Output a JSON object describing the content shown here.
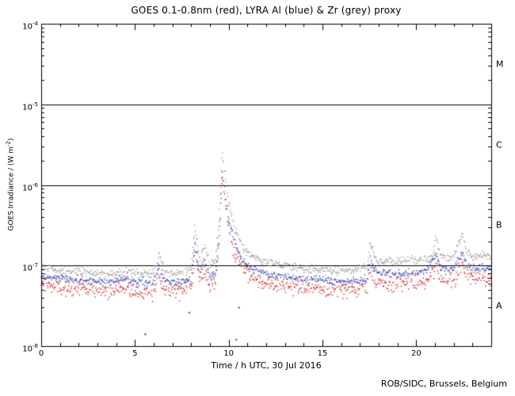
{
  "footer": {
    "credit": "ROB/SIDC, Brussels, Belgium"
  },
  "chart_data": {
    "type": "scatter",
    "title": "GOES 0.1-0.8nm (red), LYRA Al (blue) & Zr (grey) proxy",
    "xlabel": "Time / h UTC, 30 Jul 2016",
    "ylabel": {
      "prefix": "GOES Irradiance / (W m",
      "sup": "-2",
      "suffix": ")"
    },
    "xlim": [
      0,
      24
    ],
    "x_major_ticks": [
      0,
      5,
      10,
      15,
      20
    ],
    "x_minor_step": 1,
    "y_tick_exponents": [
      -8,
      -7,
      -6,
      -5,
      -4
    ],
    "ylim": [
      1e-08,
      0.0001
    ],
    "grid": false,
    "legend": "encoded in title colors",
    "flare_class_lines": [
      1e-07,
      1e-06,
      1e-05
    ],
    "flare_class_labels": [
      {
        "label": "M",
        "y": 3.16e-05
      },
      {
        "label": "C",
        "y": 3.16e-06
      },
      {
        "label": "B",
        "y": 3.16e-07
      },
      {
        "label": "A",
        "y": 3.16e-08
      }
    ],
    "sample_step_hours": 0.03,
    "series": [
      {
        "name": "LYRA Zr proxy",
        "color": "#9a9a9a",
        "scatter_sigma": 0.025,
        "anchors": [
          [
            0,
            9.5e-08
          ],
          [
            0.5,
            9e-08
          ],
          [
            1,
            8.6e-08
          ],
          [
            1.5,
            8.4e-08
          ],
          [
            2,
            8.6e-08
          ],
          [
            2.5,
            8.2e-08
          ],
          [
            3,
            8e-08
          ],
          [
            3.5,
            8e-08
          ],
          [
            4,
            8.2e-08
          ],
          [
            4.5,
            9e-08
          ],
          [
            5,
            8e-08
          ],
          [
            5.5,
            7.8e-08
          ],
          [
            6,
            8e-08
          ],
          [
            6.3,
            1.4e-07
          ],
          [
            6.6,
            8.6e-08
          ],
          [
            7,
            8e-08
          ],
          [
            7.5,
            8e-08
          ],
          [
            8.0,
            9e-08
          ],
          [
            8.2,
            3e-07
          ],
          [
            8.45,
            1.2e-07
          ],
          [
            8.7,
            1.8e-07
          ],
          [
            9.0,
            1.05e-07
          ],
          [
            9.3,
            1.15e-07
          ],
          [
            9.5,
            4e-07
          ],
          [
            9.65,
            2.5e-06
          ],
          [
            9.8,
            1.4e-06
          ],
          [
            10.0,
            6e-07
          ],
          [
            10.3,
            3e-07
          ],
          [
            10.7,
            1.8e-07
          ],
          [
            11.0,
            1.45e-07
          ],
          [
            11.4,
            1.25e-07
          ],
          [
            12,
            1.1e-07
          ],
          [
            12.5,
            1.05e-07
          ],
          [
            13,
            1e-07
          ],
          [
            13.5,
            9.6e-08
          ],
          [
            14,
            9.2e-08
          ],
          [
            14.5,
            9e-08
          ],
          [
            15,
            8.8e-08
          ],
          [
            15.5,
            8.6e-08
          ],
          [
            16,
            8.6e-08
          ],
          [
            16.5,
            8.8e-08
          ],
          [
            17,
            9.2e-08
          ],
          [
            17.4,
            1e-07
          ],
          [
            17.55,
            1.9e-07
          ],
          [
            17.8,
            1.25e-07
          ],
          [
            18,
            1.12e-07
          ],
          [
            18.5,
            1.15e-07
          ],
          [
            19,
            1.1e-07
          ],
          [
            19.5,
            1.18e-07
          ],
          [
            20,
            1.15e-07
          ],
          [
            20.5,
            1.2e-07
          ],
          [
            20.9,
            1.3e-07
          ],
          [
            21.05,
            2.3e-07
          ],
          [
            21.3,
            1.35e-07
          ],
          [
            21.7,
            1.25e-07
          ],
          [
            22,
            1.28e-07
          ],
          [
            22.45,
            2.4e-07
          ],
          [
            22.7,
            1.45e-07
          ],
          [
            23,
            1.32e-07
          ],
          [
            23.5,
            1.38e-07
          ],
          [
            24,
            1.3e-07
          ]
        ]
      },
      {
        "name": "LYRA Al",
        "color": "#3340b0",
        "scatter_sigma": 0.025,
        "anchors": [
          [
            0,
            7.2e-08
          ],
          [
            0.5,
            7e-08
          ],
          [
            1,
            6.8e-08
          ],
          [
            2,
            6.6e-08
          ],
          [
            3,
            6.3e-08
          ],
          [
            4,
            6.3e-08
          ],
          [
            4.5,
            7e-08
          ],
          [
            5,
            6.2e-08
          ],
          [
            6,
            6.2e-08
          ],
          [
            6.3,
            9.5e-08
          ],
          [
            6.6,
            6.6e-08
          ],
          [
            7,
            6.2e-08
          ],
          [
            8,
            6.6e-08
          ],
          [
            8.2,
            1.9e-07
          ],
          [
            8.45,
            8.2e-08
          ],
          [
            8.7,
            1.2e-07
          ],
          [
            9,
            7.2e-08
          ],
          [
            9.3,
            8e-08
          ],
          [
            9.5,
            2.6e-07
          ],
          [
            9.65,
            1.5e-06
          ],
          [
            9.8,
            8.5e-07
          ],
          [
            10,
            3.8e-07
          ],
          [
            10.3,
            1.9e-07
          ],
          [
            10.7,
            1.2e-07
          ],
          [
            11,
            9.8e-08
          ],
          [
            11.4,
            8.6e-08
          ],
          [
            12,
            7.8e-08
          ],
          [
            13,
            7.2e-08
          ],
          [
            13.5,
            7e-08
          ],
          [
            14,
            6.8e-08
          ],
          [
            15,
            6.4e-08
          ],
          [
            16,
            6.3e-08
          ],
          [
            17,
            6.6e-08
          ],
          [
            17.4,
            7.2e-08
          ],
          [
            17.55,
            1.25e-07
          ],
          [
            17.8,
            8.6e-08
          ],
          [
            18,
            7.8e-08
          ],
          [
            18.5,
            8e-08
          ],
          [
            19,
            7.7e-08
          ],
          [
            19.5,
            8.2e-08
          ],
          [
            20,
            8e-08
          ],
          [
            20.5,
            8.3e-08
          ],
          [
            21.05,
            1.4e-07
          ],
          [
            21.3,
            9.2e-08
          ],
          [
            22,
            8.8e-08
          ],
          [
            22.45,
            1.5e-07
          ],
          [
            22.7,
            9.6e-08
          ],
          [
            23,
            9e-08
          ],
          [
            23.5,
            9.3e-08
          ],
          [
            24,
            9e-08
          ]
        ]
      },
      {
        "name": "GOES 0.1-0.8nm",
        "color": "#cc2222",
        "scatter_sigma": 0.05,
        "anchors": [
          [
            0,
            5.6e-08
          ],
          [
            0.5,
            5.4e-08
          ],
          [
            1,
            5.2e-08
          ],
          [
            2,
            5.1e-08
          ],
          [
            3,
            4.9e-08
          ],
          [
            4,
            4.9e-08
          ],
          [
            4.5,
            5.4e-08
          ],
          [
            5,
            4.8e-08
          ],
          [
            6,
            4.8e-08
          ],
          [
            6.3,
            7e-08
          ],
          [
            6.6,
            5.1e-08
          ],
          [
            7,
            4.8e-08
          ],
          [
            8,
            5.1e-08
          ],
          [
            8.2,
            1.5e-07
          ],
          [
            8.45,
            6.3e-08
          ],
          [
            8.7,
            9e-08
          ],
          [
            9,
            5.5e-08
          ],
          [
            9.3,
            6.2e-08
          ],
          [
            9.5,
            2e-07
          ],
          [
            9.65,
            1.3e-06
          ],
          [
            9.8,
            7e-07
          ],
          [
            10,
            3e-07
          ],
          [
            10.3,
            1.5e-07
          ],
          [
            10.7,
            9e-08
          ],
          [
            11,
            7.4e-08
          ],
          [
            11.4,
            6.6e-08
          ],
          [
            12,
            6e-08
          ],
          [
            13,
            5.6e-08
          ],
          [
            13.5,
            5.4e-08
          ],
          [
            14,
            5.2e-08
          ],
          [
            15,
            5e-08
          ],
          [
            16,
            4.9e-08
          ],
          [
            17,
            5.1e-08
          ],
          [
            17.4,
            5.6e-08
          ],
          [
            17.55,
            9e-08
          ],
          [
            17.8,
            6.4e-08
          ],
          [
            18,
            6e-08
          ],
          [
            18.5,
            6.1e-08
          ],
          [
            19,
            5.9e-08
          ],
          [
            19.5,
            6.2e-08
          ],
          [
            20,
            6.1e-08
          ],
          [
            20.5,
            6.3e-08
          ],
          [
            21.05,
            1e-07
          ],
          [
            21.3,
            6.8e-08
          ],
          [
            22,
            6.6e-08
          ],
          [
            22.45,
            1.05e-07
          ],
          [
            22.7,
            7.2e-08
          ],
          [
            23,
            6.7e-08
          ],
          [
            23.5,
            6.9e-08
          ],
          [
            24,
            6.7e-08
          ]
        ]
      }
    ],
    "outliers": [
      {
        "series": 1,
        "x": 5.55,
        "y": 1.4e-08
      },
      {
        "series": 2,
        "x": 10.4,
        "y": 1.2e-08
      },
      {
        "series": 1,
        "x": 10.55,
        "y": 3e-08
      },
      {
        "series": 2,
        "x": 7.9,
        "y": 2.6e-08
      }
    ]
  }
}
